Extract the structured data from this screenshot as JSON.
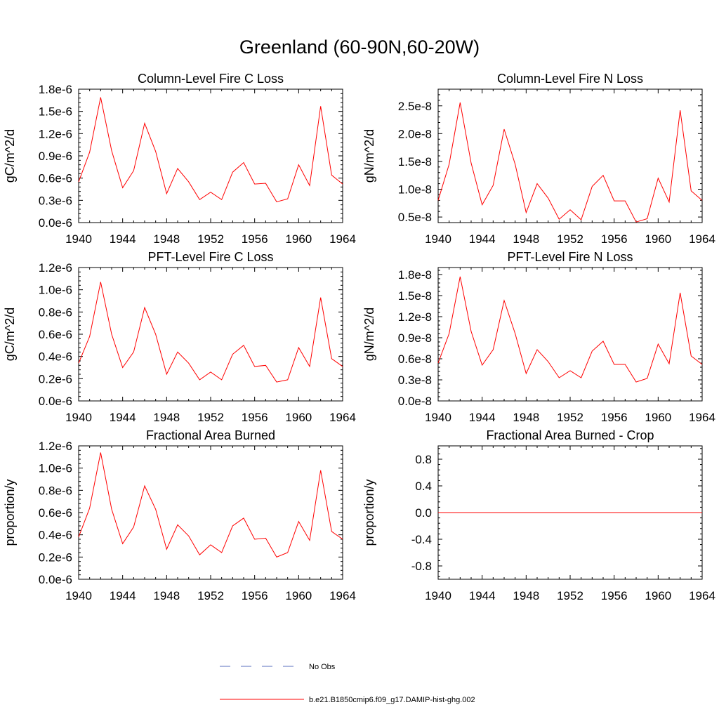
{
  "title": "Greenland (60-90N,60-20W)",
  "colors": {
    "series": "#ff0000",
    "obs": "#5a6fbf",
    "axis": "#000000"
  },
  "legend": {
    "items": [
      {
        "label": "No Obs",
        "style": "dashed",
        "color": "#5a6fbf"
      },
      {
        "label": "b.e21.B1850cmip6.f09_g17.DAMIP-hist-ghg.002",
        "style": "solid",
        "color": "#ff0000"
      }
    ]
  },
  "chart_data": [
    {
      "type": "line",
      "title": "Column-Level Fire C Loss",
      "ylabel": "gC/m^2/d",
      "xlim": [
        1940,
        1964
      ],
      "ylim": [
        0,
        1.8e-06
      ],
      "xticks": [
        1940,
        1944,
        1948,
        1952,
        1956,
        1960,
        1964
      ],
      "yticks": [
        0,
        3e-07,
        6e-07,
        9e-07,
        1.2e-06,
        1.5e-06,
        1.8e-06
      ],
      "ytick_labels": [
        "0.0e-6",
        "0.3e-6",
        "0.6e-6",
        "0.9e-6",
        "1.2e-6",
        "1.5e-6",
        "1.8e-6"
      ],
      "x": [
        1940,
        1941,
        1942,
        1943,
        1944,
        1945,
        1946,
        1947,
        1948,
        1949,
        1950,
        1951,
        1952,
        1953,
        1954,
        1955,
        1956,
        1957,
        1958,
        1959,
        1960,
        1961,
        1962,
        1963,
        1964
      ],
      "series": [
        {
          "name": "b.e21.B1850cmip6.f09_g17.DAMIP-hist-ghg.002",
          "values": [
            5.5e-07,
            9.5e-07,
            1.69e-06,
            9.7e-07,
            4.7e-07,
            7e-07,
            1.34e-06,
            9.6e-07,
            3.9e-07,
            7.3e-07,
            5.5e-07,
            3.1e-07,
            4.1e-07,
            3.1e-07,
            6.8e-07,
            8.1e-07,
            5.2e-07,
            5.3e-07,
            2.8e-07,
            3.2e-07,
            7.8e-07,
            5e-07,
            1.57e-06,
            6.4e-07,
            5.2e-07
          ]
        }
      ]
    },
    {
      "type": "line",
      "title": "Column-Level Fire N Loss",
      "ylabel": "gN/m^2/d",
      "xlim": [
        1940,
        1964
      ],
      "ylim": [
        4e-09,
        2.8e-08
      ],
      "xticks": [
        1940,
        1944,
        1948,
        1952,
        1956,
        1960,
        1964
      ],
      "yticks": [
        5e-09,
        1e-08,
        1.5e-08,
        2e-08,
        2.5e-08
      ],
      "ytick_labels": [
        "0.5e-8",
        "1.0e-8",
        "1.5e-8",
        "2.0e-8",
        "2.5e-8"
      ],
      "x": [
        1940,
        1941,
        1942,
        1943,
        1944,
        1945,
        1946,
        1947,
        1948,
        1949,
        1950,
        1951,
        1952,
        1953,
        1954,
        1955,
        1956,
        1957,
        1958,
        1959,
        1960,
        1961,
        1962,
        1963,
        1964
      ],
      "series": [
        {
          "name": "b.e21.B1850cmip6.f09_g17.DAMIP-hist-ghg.002",
          "values": [
            8e-09,
            1.45e-08,
            2.56e-08,
            1.47e-08,
            7.2e-09,
            1.07e-08,
            2.08e-08,
            1.45e-08,
            5.8e-09,
            1.1e-08,
            8.4e-09,
            4.6e-09,
            6.3e-09,
            4.5e-09,
            1.05e-08,
            1.25e-08,
            7.9e-09,
            7.9e-09,
            4.1e-09,
            4.7e-09,
            1.2e-08,
            7.7e-09,
            2.42e-08,
            9.7e-09,
            8e-09
          ]
        }
      ]
    },
    {
      "type": "line",
      "title": "PFT-Level Fire C Loss",
      "ylabel": "gC/m^2/d",
      "xlim": [
        1940,
        1964
      ],
      "ylim": [
        0,
        1.2e-06
      ],
      "xticks": [
        1940,
        1944,
        1948,
        1952,
        1956,
        1960,
        1964
      ],
      "yticks": [
        0,
        2e-07,
        4e-07,
        6e-07,
        8e-07,
        1e-06,
        1.2e-06
      ],
      "ytick_labels": [
        "0.0e-6",
        "0.2e-6",
        "0.4e-6",
        "0.6e-6",
        "0.8e-6",
        "1.0e-6",
        "1.2e-6"
      ],
      "x": [
        1940,
        1941,
        1942,
        1943,
        1944,
        1945,
        1946,
        1947,
        1948,
        1949,
        1950,
        1951,
        1952,
        1953,
        1954,
        1955,
        1956,
        1957,
        1958,
        1959,
        1960,
        1961,
        1962,
        1963,
        1964
      ],
      "series": [
        {
          "name": "b.e21.B1850cmip6.f09_g17.DAMIP-hist-ghg.002",
          "values": [
            3.4e-07,
            5.8e-07,
            1.07e-06,
            6e-07,
            3e-07,
            4.4e-07,
            8.4e-07,
            6e-07,
            2.4e-07,
            4.4e-07,
            3.4e-07,
            1.9e-07,
            2.6e-07,
            1.9e-07,
            4.2e-07,
            5e-07,
            3.1e-07,
            3.2e-07,
            1.7e-07,
            1.9e-07,
            4.8e-07,
            3.1e-07,
            9.3e-07,
            3.8e-07,
            3.1e-07
          ]
        }
      ]
    },
    {
      "type": "line",
      "title": "PFT-Level Fire N Loss",
      "ylabel": "gN/m^2/d",
      "xlim": [
        1940,
        1964
      ],
      "ylim": [
        0,
        1.9e-08
      ],
      "xticks": [
        1940,
        1944,
        1948,
        1952,
        1956,
        1960,
        1964
      ],
      "yticks": [
        0,
        3e-09,
        6e-09,
        9e-09,
        1.2e-08,
        1.5e-08,
        1.8e-08
      ],
      "ytick_labels": [
        "0.0e-8",
        "0.3e-8",
        "0.6e-8",
        "0.9e-8",
        "1.2e-8",
        "1.5e-8",
        "1.8e-8"
      ],
      "x": [
        1940,
        1941,
        1942,
        1943,
        1944,
        1945,
        1946,
        1947,
        1948,
        1949,
        1950,
        1951,
        1952,
        1953,
        1954,
        1955,
        1956,
        1957,
        1958,
        1959,
        1960,
        1961,
        1962,
        1963,
        1964
      ],
      "series": [
        {
          "name": "b.e21.B1850cmip6.f09_g17.DAMIP-hist-ghg.002",
          "values": [
            5.4e-09,
            9.6e-09,
            1.77e-08,
            9.9e-09,
            5.1e-09,
            7.3e-09,
            1.43e-08,
            9.6e-09,
            3.9e-09,
            7.3e-09,
            5.6e-09,
            3.3e-09,
            4.3e-09,
            3.3e-09,
            7.1e-09,
            8.5e-09,
            5.2e-09,
            5.2e-09,
            2.7e-09,
            3.2e-09,
            8.1e-09,
            5.3e-09,
            1.54e-08,
            6.4e-09,
            5.2e-09
          ]
        }
      ]
    },
    {
      "type": "line",
      "title": "Fractional Area Burned",
      "ylabel": "proportion/y",
      "xlim": [
        1940,
        1964
      ],
      "ylim": [
        0,
        1.2e-06
      ],
      "xticks": [
        1940,
        1944,
        1948,
        1952,
        1956,
        1960,
        1964
      ],
      "yticks": [
        0,
        2e-07,
        4e-07,
        6e-07,
        8e-07,
        1e-06,
        1.2e-06
      ],
      "ytick_labels": [
        "0.0e-6",
        "0.2e-6",
        "0.4e-6",
        "0.6e-6",
        "0.8e-6",
        "1.0e-6",
        "1.2e-6"
      ],
      "x": [
        1940,
        1941,
        1942,
        1943,
        1944,
        1945,
        1946,
        1947,
        1948,
        1949,
        1950,
        1951,
        1952,
        1953,
        1954,
        1955,
        1956,
        1957,
        1958,
        1959,
        1960,
        1961,
        1962,
        1963,
        1964
      ],
      "series": [
        {
          "name": "b.e21.B1850cmip6.f09_g17.DAMIP-hist-ghg.002",
          "values": [
            3.8e-07,
            6.4e-07,
            1.14e-06,
            6.3e-07,
            3.2e-07,
            4.7e-07,
            8.4e-07,
            6.3e-07,
            2.7e-07,
            4.9e-07,
            3.9e-07,
            2.2e-07,
            3.1e-07,
            2.4e-07,
            4.8e-07,
            5.5e-07,
            3.6e-07,
            3.7e-07,
            2e-07,
            2.4e-07,
            5.2e-07,
            3.5e-07,
            9.8e-07,
            4.3e-07,
            3.6e-07
          ]
        }
      ]
    },
    {
      "type": "line",
      "title": "Fractional Area Burned - Crop",
      "ylabel": "proportion/y",
      "xlim": [
        1940,
        1964
      ],
      "ylim": [
        -1,
        1
      ],
      "xticks": [
        1940,
        1944,
        1948,
        1952,
        1956,
        1960,
        1964
      ],
      "yticks": [
        -0.8,
        -0.4,
        0,
        0.4,
        0.8
      ],
      "ytick_labels": [
        "-0.8",
        "-0.4",
        "0.0",
        "0.4",
        "0.8"
      ],
      "x": [
        1940,
        1941,
        1942,
        1943,
        1944,
        1945,
        1946,
        1947,
        1948,
        1949,
        1950,
        1951,
        1952,
        1953,
        1954,
        1955,
        1956,
        1957,
        1958,
        1959,
        1960,
        1961,
        1962,
        1963,
        1964
      ],
      "series": [
        {
          "name": "b.e21.B1850cmip6.f09_g17.DAMIP-hist-ghg.002",
          "values": [
            0,
            0,
            0,
            0,
            0,
            0,
            0,
            0,
            0,
            0,
            0,
            0,
            0,
            0,
            0,
            0,
            0,
            0,
            0,
            0,
            0,
            0,
            0,
            0,
            0
          ]
        }
      ]
    }
  ]
}
